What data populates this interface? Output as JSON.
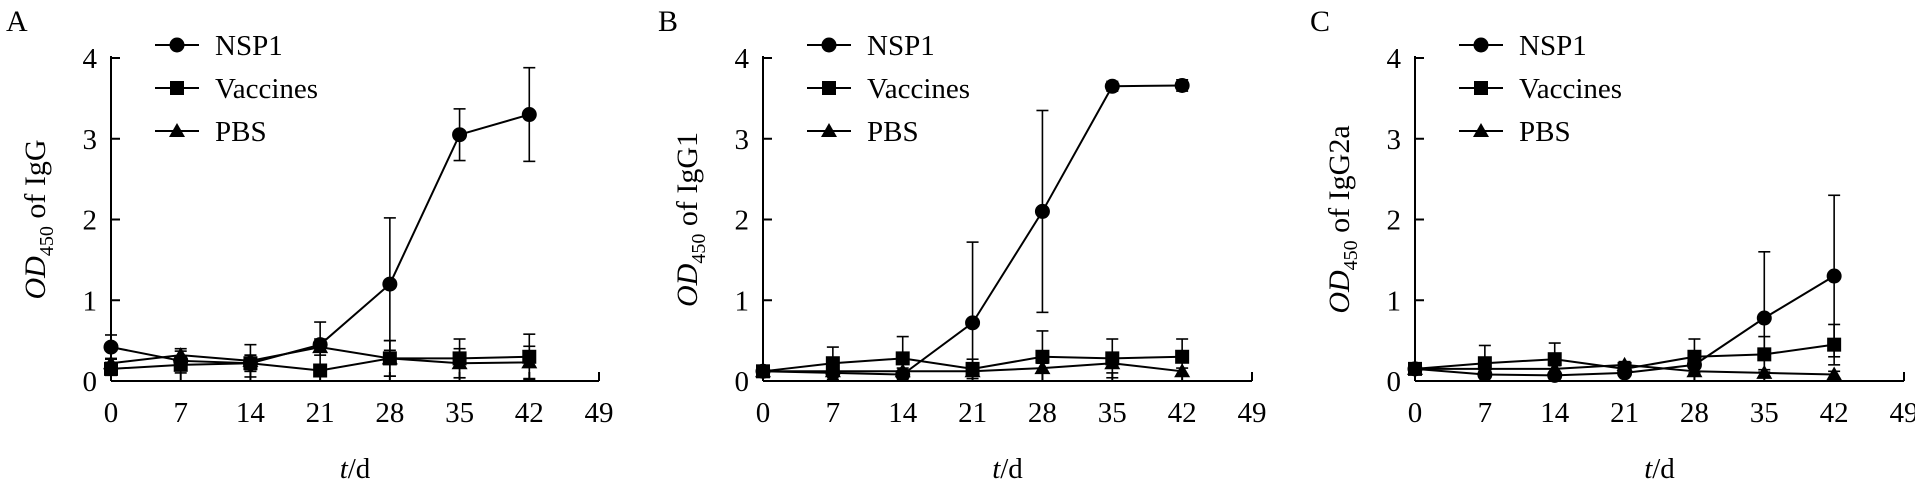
{
  "chart_data": [
    {
      "type": "line",
      "panel_label": "A",
      "ylabel": {
        "main": "OD",
        "sub": "450",
        "rest": " of IgG"
      },
      "xlabel": {
        "italic": "t",
        "rest": "/d"
      },
      "xlim": [
        0,
        49
      ],
      "ylim": [
        0,
        4
      ],
      "x_ticks": [
        0,
        7,
        14,
        21,
        28,
        35,
        42,
        49
      ],
      "y_ticks": [
        0,
        1,
        2,
        3,
        4
      ],
      "x": [
        0,
        7,
        14,
        21,
        28,
        35,
        42
      ],
      "legend_position": "top-left",
      "series": [
        {
          "name": "NSP1",
          "marker": "circle",
          "values": [
            0.42,
            0.25,
            0.22,
            0.45,
            1.2,
            3.05,
            3.3
          ],
          "errors": [
            0.15,
            0.12,
            0.1,
            0.28,
            0.82,
            0.32,
            0.58
          ]
        },
        {
          "name": "Vaccines",
          "marker": "square",
          "values": [
            0.15,
            0.2,
            0.22,
            0.13,
            0.28,
            0.28,
            0.3
          ],
          "errors": [
            0.08,
            0.1,
            0.1,
            0.06,
            0.22,
            0.24,
            0.28
          ]
        },
        {
          "name": "PBS",
          "marker": "triangle",
          "values": [
            0.22,
            0.32,
            0.25,
            0.42,
            0.28,
            0.22,
            0.23
          ],
          "errors": [
            0.06,
            0.08,
            0.2,
            0.1,
            0.22,
            0.18,
            0.2
          ]
        }
      ]
    },
    {
      "type": "line",
      "panel_label": "B",
      "ylabel": {
        "main": "OD",
        "sub": "450",
        "rest": " of IgG1"
      },
      "xlabel": {
        "italic": "t",
        "rest": "/d"
      },
      "xlim": [
        0,
        49
      ],
      "ylim": [
        0,
        4
      ],
      "x_ticks": [
        0,
        7,
        14,
        21,
        28,
        35,
        42,
        49
      ],
      "y_ticks": [
        0,
        1,
        2,
        3,
        4
      ],
      "x": [
        0,
        7,
        14,
        21,
        28,
        35,
        42
      ],
      "legend_position": "top-left",
      "series": [
        {
          "name": "NSP1",
          "marker": "circle",
          "values": [
            0.12,
            0.1,
            0.08,
            0.72,
            2.1,
            3.65,
            3.66
          ],
          "errors": [
            0.03,
            0.04,
            0.04,
            1.0,
            1.25,
            0.06,
            0.07
          ]
        },
        {
          "name": "Vaccines",
          "marker": "square",
          "values": [
            0.12,
            0.22,
            0.28,
            0.15,
            0.3,
            0.28,
            0.3
          ],
          "errors": [
            0.05,
            0.2,
            0.27,
            0.12,
            0.32,
            0.24,
            0.22
          ]
        },
        {
          "name": "PBS",
          "marker": "triangle",
          "values": [
            0.12,
            0.12,
            0.12,
            0.12,
            0.16,
            0.22,
            0.12
          ],
          "errors": [
            0.04,
            0.04,
            0.04,
            0.04,
            0.06,
            0.12,
            0.04
          ]
        }
      ]
    },
    {
      "type": "line",
      "panel_label": "C",
      "ylabel": {
        "main": "OD",
        "sub": "450",
        "rest": " of IgG2a"
      },
      "xlabel": {
        "italic": "t",
        "rest": "/d"
      },
      "xlim": [
        0,
        49
      ],
      "ylim": [
        0,
        4
      ],
      "x_ticks": [
        0,
        7,
        14,
        21,
        28,
        35,
        42,
        49
      ],
      "y_ticks": [
        0,
        1,
        2,
        3,
        4
      ],
      "x": [
        0,
        7,
        14,
        21,
        28,
        35,
        42
      ],
      "legend_position": "top-left",
      "series": [
        {
          "name": "NSP1",
          "marker": "circle",
          "values": [
            0.15,
            0.08,
            0.07,
            0.1,
            0.2,
            0.78,
            1.3
          ],
          "errors": [
            0.04,
            0.04,
            0.04,
            0.04,
            0.1,
            0.82,
            1.0
          ]
        },
        {
          "name": "Vaccines",
          "marker": "square",
          "values": [
            0.15,
            0.22,
            0.27,
            0.15,
            0.3,
            0.33,
            0.45
          ],
          "errors": [
            0.05,
            0.22,
            0.2,
            0.08,
            0.22,
            0.22,
            0.25
          ]
        },
        {
          "name": "PBS",
          "marker": "triangle",
          "values": [
            0.15,
            0.15,
            0.15,
            0.2,
            0.12,
            0.1,
            0.08
          ],
          "errors": [
            0.04,
            0.04,
            0.04,
            0.04,
            0.04,
            0.04,
            0.04
          ]
        }
      ]
    }
  ]
}
